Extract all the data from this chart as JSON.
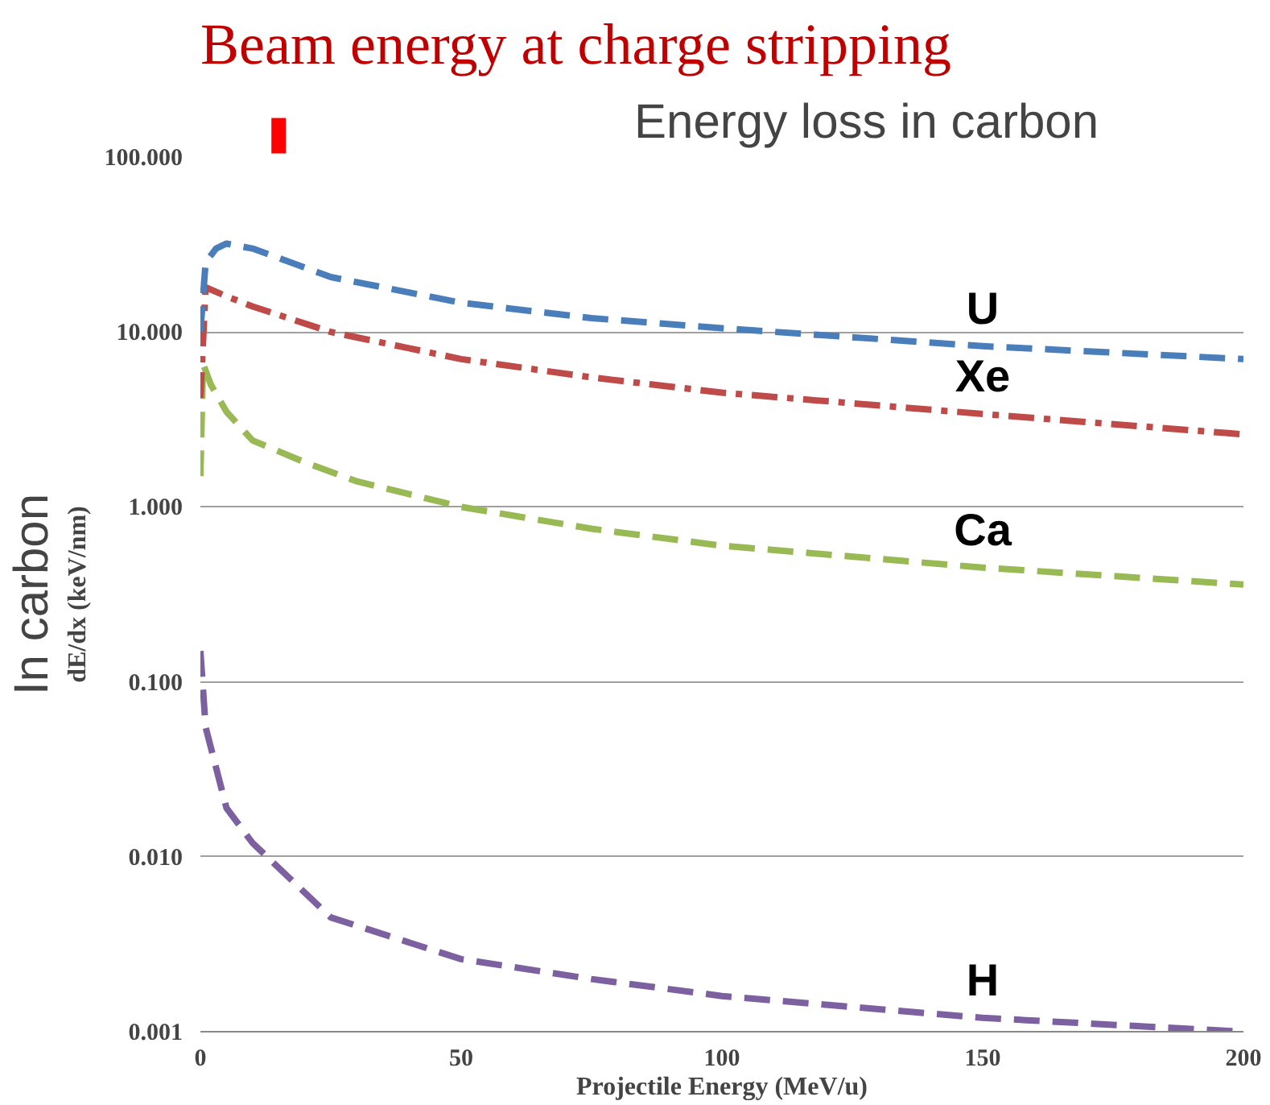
{
  "chart_data": {
    "type": "line",
    "title": "Energy loss in carbon",
    "xlabel": "Projectile Energy (MeV/u)",
    "ylabel": "dE/dx (keV/nm)",
    "log": "y",
    "grid": "y",
    "line_style": "dashed",
    "legend": false,
    "xlim": [
      0,
      200
    ],
    "xticks": [
      0,
      50,
      100,
      150,
      200
    ],
    "ylim": [
      0.001,
      100
    ],
    "yticks": [
      {
        "value": 0.001,
        "label": "0.001"
      },
      {
        "value": 0.01,
        "label": "0.010"
      },
      {
        "value": 0.1,
        "label": "0.100"
      },
      {
        "value": 1,
        "label": "1.000"
      },
      {
        "value": 10,
        "label": "10.000"
      },
      {
        "value": 100,
        "label": "100.000"
      }
    ],
    "annotations": [
      "In carbon"
    ],
    "ref_lines": [
      {
        "axis": "x",
        "value": 15,
        "label": "Beam energy at charge stripping",
        "color": "#ff0000"
      }
    ],
    "series": [
      {
        "name": "U",
        "color": "#4a7ebb",
        "x": [
          0,
          1,
          3,
          5,
          10,
          25,
          50,
          75,
          100,
          150,
          200
        ],
        "values": [
          10,
          25,
          30,
          32,
          30,
          20.6,
          14.7,
          12,
          10.5,
          8.3,
          7
        ]
      },
      {
        "name": "Xe",
        "color": "#be4b48",
        "line_style": "dashdot",
        "x": [
          0,
          1,
          5,
          10,
          25,
          50,
          75,
          100,
          150,
          200
        ],
        "values": [
          4.2,
          18,
          16,
          14,
          10,
          7,
          5.5,
          4.5,
          3.4,
          2.6
        ]
      },
      {
        "name": "Ca",
        "color": "#98b954",
        "x": [
          0,
          0.5,
          2,
          5,
          10,
          20,
          30,
          50,
          75,
          100,
          150,
          200
        ],
        "values": [
          1.5,
          6.6,
          5,
          3.5,
          2.4,
          1.8,
          1.4,
          1.0,
          0.75,
          0.6,
          0.45,
          0.36
        ]
      },
      {
        "name": "H",
        "color": "#7d60a0",
        "x": [
          0,
          1,
          5,
          10,
          25,
          50,
          75,
          100,
          150,
          200
        ],
        "values": [
          0.15,
          0.055,
          0.019,
          0.012,
          0.0045,
          0.0026,
          0.002,
          0.0016,
          0.0012,
          0.001
        ]
      }
    ]
  }
}
